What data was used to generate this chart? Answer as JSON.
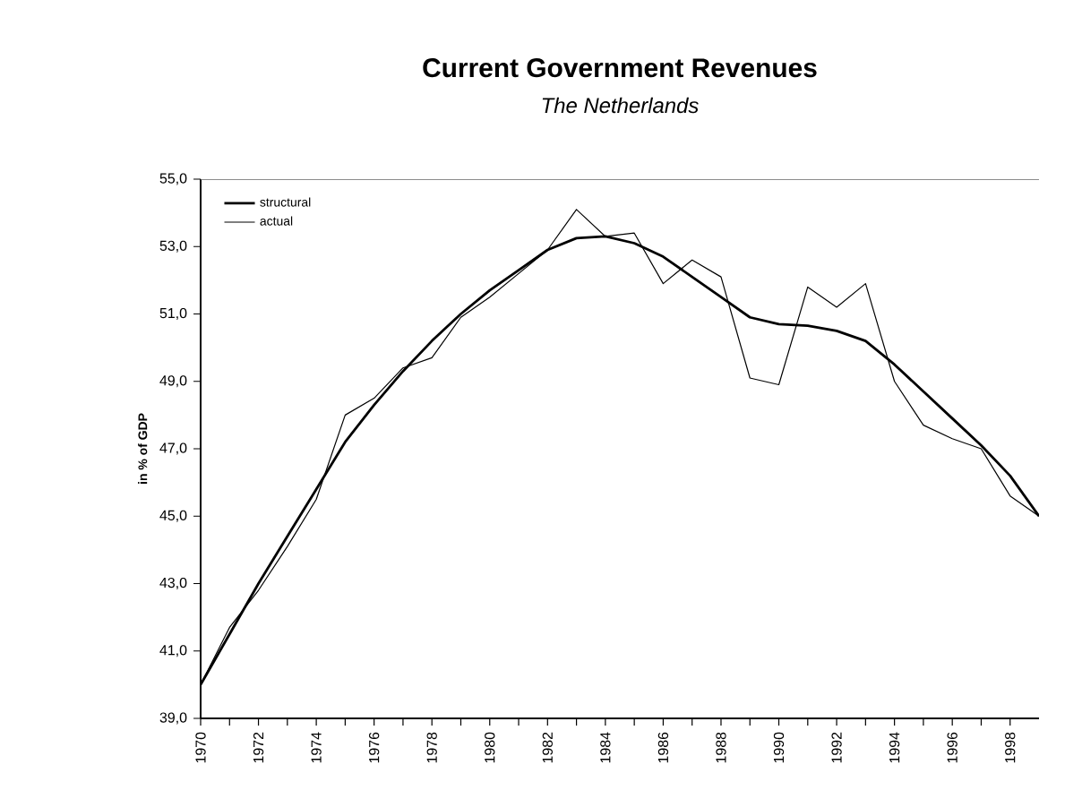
{
  "chart_data": {
    "type": "line",
    "title": "Current Government Revenues",
    "subtitle": "The Netherlands",
    "ylabel": "in % of GDP",
    "x": [
      1970,
      1971,
      1972,
      1973,
      1974,
      1975,
      1976,
      1977,
      1978,
      1979,
      1980,
      1981,
      1982,
      1983,
      1984,
      1985,
      1986,
      1987,
      1988,
      1989,
      1990,
      1991,
      1992,
      1993,
      1994,
      1995,
      1996,
      1997,
      1998,
      1999
    ],
    "series": [
      {
        "name": "structural",
        "color": "#000000",
        "values": [
          40.0,
          41.5,
          43.0,
          44.4,
          45.8,
          47.2,
          48.3,
          49.3,
          50.2,
          51.0,
          51.7,
          52.3,
          52.9,
          53.25,
          53.3,
          53.1,
          52.7,
          52.1,
          51.5,
          50.9,
          50.7,
          50.65,
          50.5,
          50.2,
          49.5,
          48.7,
          47.9,
          47.1,
          46.2,
          45.0
        ]
      },
      {
        "name": "actual",
        "color": "#000000",
        "values": [
          40.0,
          41.7,
          42.8,
          44.1,
          45.5,
          48.0,
          48.5,
          49.4,
          49.7,
          50.9,
          51.5,
          52.2,
          52.9,
          54.1,
          53.3,
          53.4,
          51.9,
          52.6,
          52.1,
          49.1,
          48.9,
          51.8,
          51.2,
          51.9,
          49.0,
          47.7,
          47.3,
          47.0,
          45.6,
          45.0
        ]
      }
    ],
    "xlim": [
      1970,
      1999
    ],
    "xticks": [
      1970,
      {
        "value": 1971,
        "label": null
      },
      1972,
      {
        "value": 1973,
        "label": null
      },
      1974,
      {
        "value": 1975,
        "label": null
      },
      1976,
      {
        "value": 1977,
        "label": null
      },
      1978,
      {
        "value": 1979,
        "label": null
      },
      1980,
      {
        "value": 1981,
        "label": null
      },
      1982,
      {
        "value": 1983,
        "label": null
      },
      1984,
      {
        "value": 1985,
        "label": null
      },
      1986,
      {
        "value": 1987,
        "label": null
      },
      1988,
      {
        "value": 1989,
        "label": null
      },
      1990,
      {
        "value": 1991,
        "label": null
      },
      1992,
      {
        "value": 1993,
        "label": null
      },
      1994,
      {
        "value": 1995,
        "label": null
      },
      1996,
      {
        "value": 1997,
        "label": null
      },
      1998
    ],
    "ylim": [
      39,
      55
    ],
    "yticks": [
      {
        "value": 39,
        "label": "39,0"
      },
      {
        "value": 41,
        "label": "41,0"
      },
      {
        "value": 43,
        "label": "43,0"
      },
      {
        "value": 45,
        "label": "45,0"
      },
      {
        "value": 47,
        "label": "47,0"
      },
      {
        "value": 49,
        "label": "49,0"
      },
      {
        "value": 51,
        "label": "51,0"
      },
      {
        "value": 53,
        "label": "53,0"
      },
      {
        "value": 55,
        "label": "55,0"
      }
    ],
    "legend": "top left",
    "grid": false,
    "marker": "none",
    "line_style": "solid"
  }
}
